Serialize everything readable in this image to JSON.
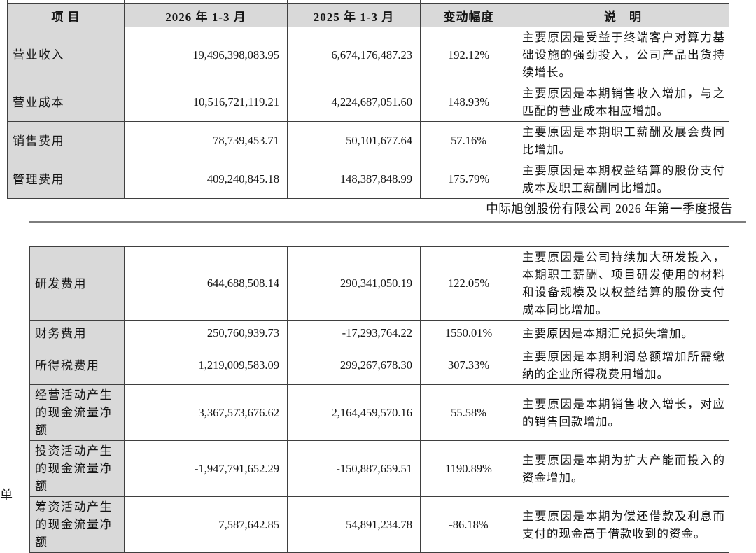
{
  "page": {
    "report_header": "中际旭创股份有限公司 2026 年第一季度报告",
    "bottom_left_clipped_text": "单"
  },
  "colors": {
    "cell_shade": "#d9d9d9",
    "table_border": "#3f3f3f",
    "header_rule": "#7d7d7d"
  },
  "table1": {
    "headers": [
      "项 目",
      "2026 年 1-3 月",
      "2025 年 1-3 月",
      "变动幅度",
      "说　明"
    ],
    "rows": [
      {
        "item": "营业收入",
        "v2026": "19,496,398,083.95",
        "v2025": "6,674,176,487.23",
        "change": "192.12%",
        "note": "主要原因是受益于终端客户对算力基础设施的强劲投入，公司产品出货持续增长。"
      },
      {
        "item": "营业成本",
        "v2026": "10,516,721,119.21",
        "v2025": "4,224,687,051.60",
        "change": "148.93%",
        "note": "主要原因是本期销售收入增加，与之匹配的营业成本相应增加。"
      },
      {
        "item": "销售费用",
        "v2026": "78,739,453.71",
        "v2025": "50,101,677.64",
        "change": "57.16%",
        "note": "主要原因是本期职工薪酬及展会费同比增加。"
      },
      {
        "item": "管理费用",
        "v2026": "409,240,845.18",
        "v2025": "148,387,848.99",
        "change": "175.79%",
        "note": "主要原因是本期权益结算的股份支付成本及职工薪酬同比增加。"
      }
    ]
  },
  "table2": {
    "rows": [
      {
        "item": "研发费用",
        "v2026": "644,688,508.14",
        "v2025": "290,341,050.19",
        "change": "122.05%",
        "note": "主要原因是公司持续加大研发投入，本期职工薪酬、项目研发使用的材料和设备规模及以权益结算的股份支付成本同比增加。"
      },
      {
        "item": "财务费用",
        "v2026": "250,760,939.73",
        "v2025": "-17,293,764.22",
        "change": "1550.01%",
        "note": "主要原因是本期汇兑损失增加。"
      },
      {
        "item": "所得税费用",
        "v2026": "1,219,009,583.09",
        "v2025": "299,267,678.30",
        "change": "307.33%",
        "note": "主要原因是本期利润总额增加所需缴纳的企业所得税费用增加。"
      },
      {
        "item": "经营活动产生的现金流量净额",
        "v2026": "3,367,573,676.62",
        "v2025": "2,164,459,570.16",
        "change": "55.58%",
        "note": "主要原因是本期销售收入增长，对应的销售回款增加。"
      },
      {
        "item": "投资活动产生的现金流量净额",
        "v2026": "-1,947,791,652.29",
        "v2025": "-150,887,659.51",
        "change": "1190.89%",
        "note": "主要原因是本期为扩大产能而投入的资金增加。"
      },
      {
        "item": "筹资活动产生的现金流量净额",
        "v2026": "7,587,642.85",
        "v2025": "54,891,234.78",
        "change": "-86.18%",
        "note": "主要原因是本期为偿还借款及利息而支付的现金高于借款收到的资金。"
      }
    ]
  }
}
